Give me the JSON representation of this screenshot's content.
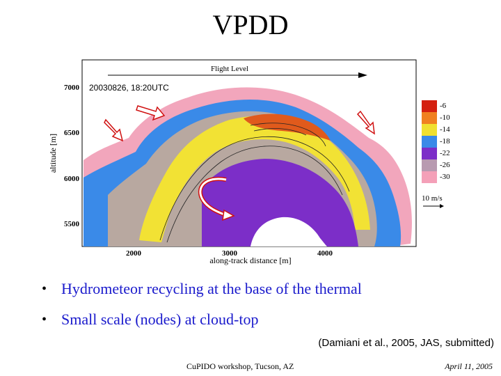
{
  "slide": {
    "title": "VPDD",
    "bullets": [
      "Hydrometeor recycling at the base of the thermal",
      "Small scale (nodes) at cloud-top"
    ],
    "citation": "(Damiani et al., 2005, JAS, submitted)",
    "footer_left": "CuPIDO workshop, Tucson, AZ",
    "footer_right": "April 11, 2005"
  },
  "figure": {
    "flight_level_label": "Flight Level",
    "timestamp": "20030826, 18:20UTC",
    "ylabel": "altitude [m]",
    "xlabel": "along-track distance [m]",
    "y_ticks": [
      "7000",
      "6500",
      "6000",
      "5500"
    ],
    "x_ticks": [
      "2000",
      "3000",
      "4000"
    ],
    "colorbar_labels": [
      "-6",
      "-10",
      "-14",
      "-18",
      "-22",
      "-26",
      "-30"
    ],
    "colorbar_colors": [
      "#d42010",
      "#f08020",
      "#f0e030",
      "#3a8ae8",
      "#7c2ec8",
      "#b89ab0",
      "#f4a0b8"
    ],
    "vector_scale_label": "10 m/s"
  }
}
